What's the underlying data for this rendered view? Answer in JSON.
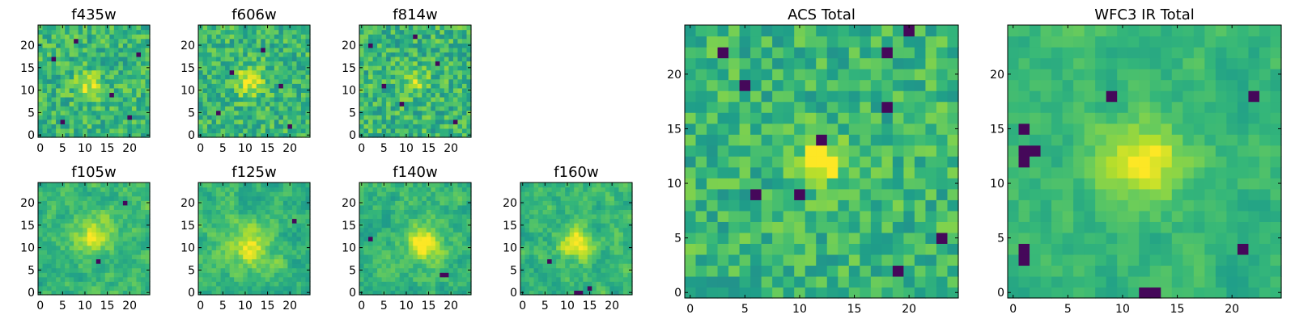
{
  "chart_data": [
    {
      "type": "heatmap",
      "title": "f435w",
      "grid_size": 25,
      "xlim": [
        -0.5,
        24.5
      ],
      "ylim": [
        -0.5,
        24.5
      ],
      "xticks": [
        0,
        5,
        10,
        15,
        20
      ],
      "yticks": [
        0,
        5,
        10,
        15,
        20
      ],
      "noise_seed": 11,
      "peak": {
        "x": 11,
        "y": 11,
        "sigma": 2.2,
        "amp": 0.25
      },
      "noise_amp": 0.32,
      "smooth": 0,
      "dark_pixels": [
        [
          3,
          17
        ],
        [
          8,
          21
        ],
        [
          16,
          9
        ],
        [
          20,
          4
        ],
        [
          22,
          18
        ],
        [
          5,
          3
        ]
      ],
      "colormap": "viridis"
    },
    {
      "type": "heatmap",
      "title": "f606w",
      "grid_size": 25,
      "xlim": [
        -0.5,
        24.5
      ],
      "ylim": [
        -0.5,
        24.5
      ],
      "xticks": [
        0,
        5,
        10,
        15,
        20
      ],
      "yticks": [
        0,
        5,
        10,
        15,
        20
      ],
      "noise_seed": 23,
      "peak": {
        "x": 11,
        "y": 12,
        "sigma": 2.2,
        "amp": 0.35
      },
      "noise_amp": 0.32,
      "smooth": 0,
      "dark_pixels": [
        [
          4,
          5
        ],
        [
          14,
          19
        ],
        [
          20,
          2
        ],
        [
          7,
          14
        ],
        [
          18,
          11
        ]
      ],
      "colormap": "viridis"
    },
    {
      "type": "heatmap",
      "title": "f814w",
      "grid_size": 25,
      "xlim": [
        -0.5,
        24.5
      ],
      "ylim": [
        -0.5,
        24.5
      ],
      "xticks": [
        0,
        5,
        10,
        15,
        20
      ],
      "yticks": [
        0,
        5,
        10,
        15,
        20
      ],
      "noise_seed": 37,
      "peak": {
        "x": 12,
        "y": 12,
        "sigma": 2.0,
        "amp": 0.2
      },
      "noise_amp": 0.34,
      "smooth": 0,
      "dark_pixels": [
        [
          2,
          20
        ],
        [
          9,
          7
        ],
        [
          17,
          16
        ],
        [
          21,
          3
        ],
        [
          12,
          22
        ],
        [
          5,
          11
        ]
      ],
      "colormap": "viridis"
    },
    {
      "type": "heatmap",
      "title": "f105w",
      "grid_size": 25,
      "xlim": [
        -0.5,
        24.5
      ],
      "ylim": [
        -0.5,
        24.5
      ],
      "xticks": [
        0,
        5,
        10,
        15,
        20
      ],
      "yticks": [
        0,
        5,
        10,
        15,
        20
      ],
      "noise_seed": 41,
      "peak": {
        "x": 12,
        "y": 13,
        "sigma": 3.0,
        "amp": 0.3
      },
      "noise_amp": 0.4,
      "smooth": 1,
      "dark_pixels": [
        [
          13,
          7
        ],
        [
          19,
          20
        ]
      ],
      "colormap": "viridis"
    },
    {
      "type": "heatmap",
      "title": "f125w",
      "grid_size": 25,
      "xlim": [
        -0.5,
        24.5
      ],
      "ylim": [
        -0.5,
        24.5
      ],
      "xticks": [
        0,
        5,
        10,
        15,
        20
      ],
      "yticks": [
        0,
        5,
        10,
        15,
        20
      ],
      "noise_seed": 53,
      "peak": {
        "x": 11,
        "y": 10,
        "sigma": 3.2,
        "amp": 0.3
      },
      "noise_amp": 0.4,
      "smooth": 1,
      "dark_pixels": [
        [
          21,
          16
        ]
      ],
      "colormap": "viridis"
    },
    {
      "type": "heatmap",
      "title": "f140w",
      "grid_size": 25,
      "xlim": [
        -0.5,
        24.5
      ],
      "ylim": [
        -0.5,
        24.5
      ],
      "xticks": [
        0,
        5,
        10,
        15,
        20
      ],
      "yticks": [
        0,
        5,
        10,
        15,
        20
      ],
      "noise_seed": 67,
      "peak": {
        "x": 14,
        "y": 11,
        "sigma": 2.8,
        "amp": 0.35
      },
      "noise_amp": 0.4,
      "smooth": 1,
      "dark_pixels": [
        [
          18,
          4
        ],
        [
          19,
          4
        ],
        [
          2,
          12
        ]
      ],
      "colormap": "viridis"
    },
    {
      "type": "heatmap",
      "title": "f160w",
      "grid_size": 25,
      "xlim": [
        -0.5,
        24.5
      ],
      "ylim": [
        -0.5,
        24.5
      ],
      "xticks": [
        0,
        5,
        10,
        15,
        20
      ],
      "yticks": [
        0,
        5,
        10,
        15,
        20
      ],
      "noise_seed": 79,
      "peak": {
        "x": 12,
        "y": 11,
        "sigma": 2.6,
        "amp": 0.35
      },
      "noise_amp": 0.4,
      "smooth": 1,
      "dark_pixels": [
        [
          12,
          0
        ],
        [
          13,
          0
        ],
        [
          15,
          1
        ],
        [
          6,
          7
        ]
      ],
      "colormap": "viridis"
    },
    {
      "type": "heatmap",
      "title": "ACS Total",
      "grid_size": 25,
      "xlim": [
        -0.5,
        24.5
      ],
      "ylim": [
        -0.5,
        24.5
      ],
      "xticks": [
        0,
        5,
        10,
        15,
        20
      ],
      "yticks": [
        0,
        5,
        10,
        15,
        20
      ],
      "noise_seed": 97,
      "peak": {
        "x": 12,
        "y": 12,
        "sigma": 1.4,
        "amp": 0.45
      },
      "noise_amp": 0.3,
      "smooth": 0,
      "dark_pixels": [
        [
          3,
          22
        ],
        [
          5,
          19
        ],
        [
          12,
          14
        ],
        [
          6,
          9
        ],
        [
          10,
          9
        ],
        [
          20,
          24
        ],
        [
          18,
          22
        ],
        [
          19,
          2
        ],
        [
          18,
          17
        ],
        [
          23,
          5
        ]
      ],
      "colormap": "viridis"
    },
    {
      "type": "heatmap",
      "title": "WFC3 IR Total",
      "grid_size": 25,
      "xlim": [
        -0.5,
        24.5
      ],
      "ylim": [
        -0.5,
        24.5
      ],
      "xticks": [
        0,
        5,
        10,
        15,
        20
      ],
      "yticks": [
        0,
        5,
        10,
        15,
        20
      ],
      "noise_seed": 131,
      "peak": {
        "x": 12,
        "y": 12,
        "sigma": 2.6,
        "amp": 0.35
      },
      "noise_amp": 0.3,
      "smooth": 1,
      "dark_pixels": [
        [
          1,
          15
        ],
        [
          1,
          13
        ],
        [
          2,
          13
        ],
        [
          1,
          12
        ],
        [
          1,
          4
        ],
        [
          1,
          3
        ],
        [
          9,
          18
        ],
        [
          21,
          4
        ],
        [
          22,
          18
        ],
        [
          12,
          0
        ],
        [
          13,
          0
        ]
      ],
      "colormap": "viridis"
    }
  ]
}
